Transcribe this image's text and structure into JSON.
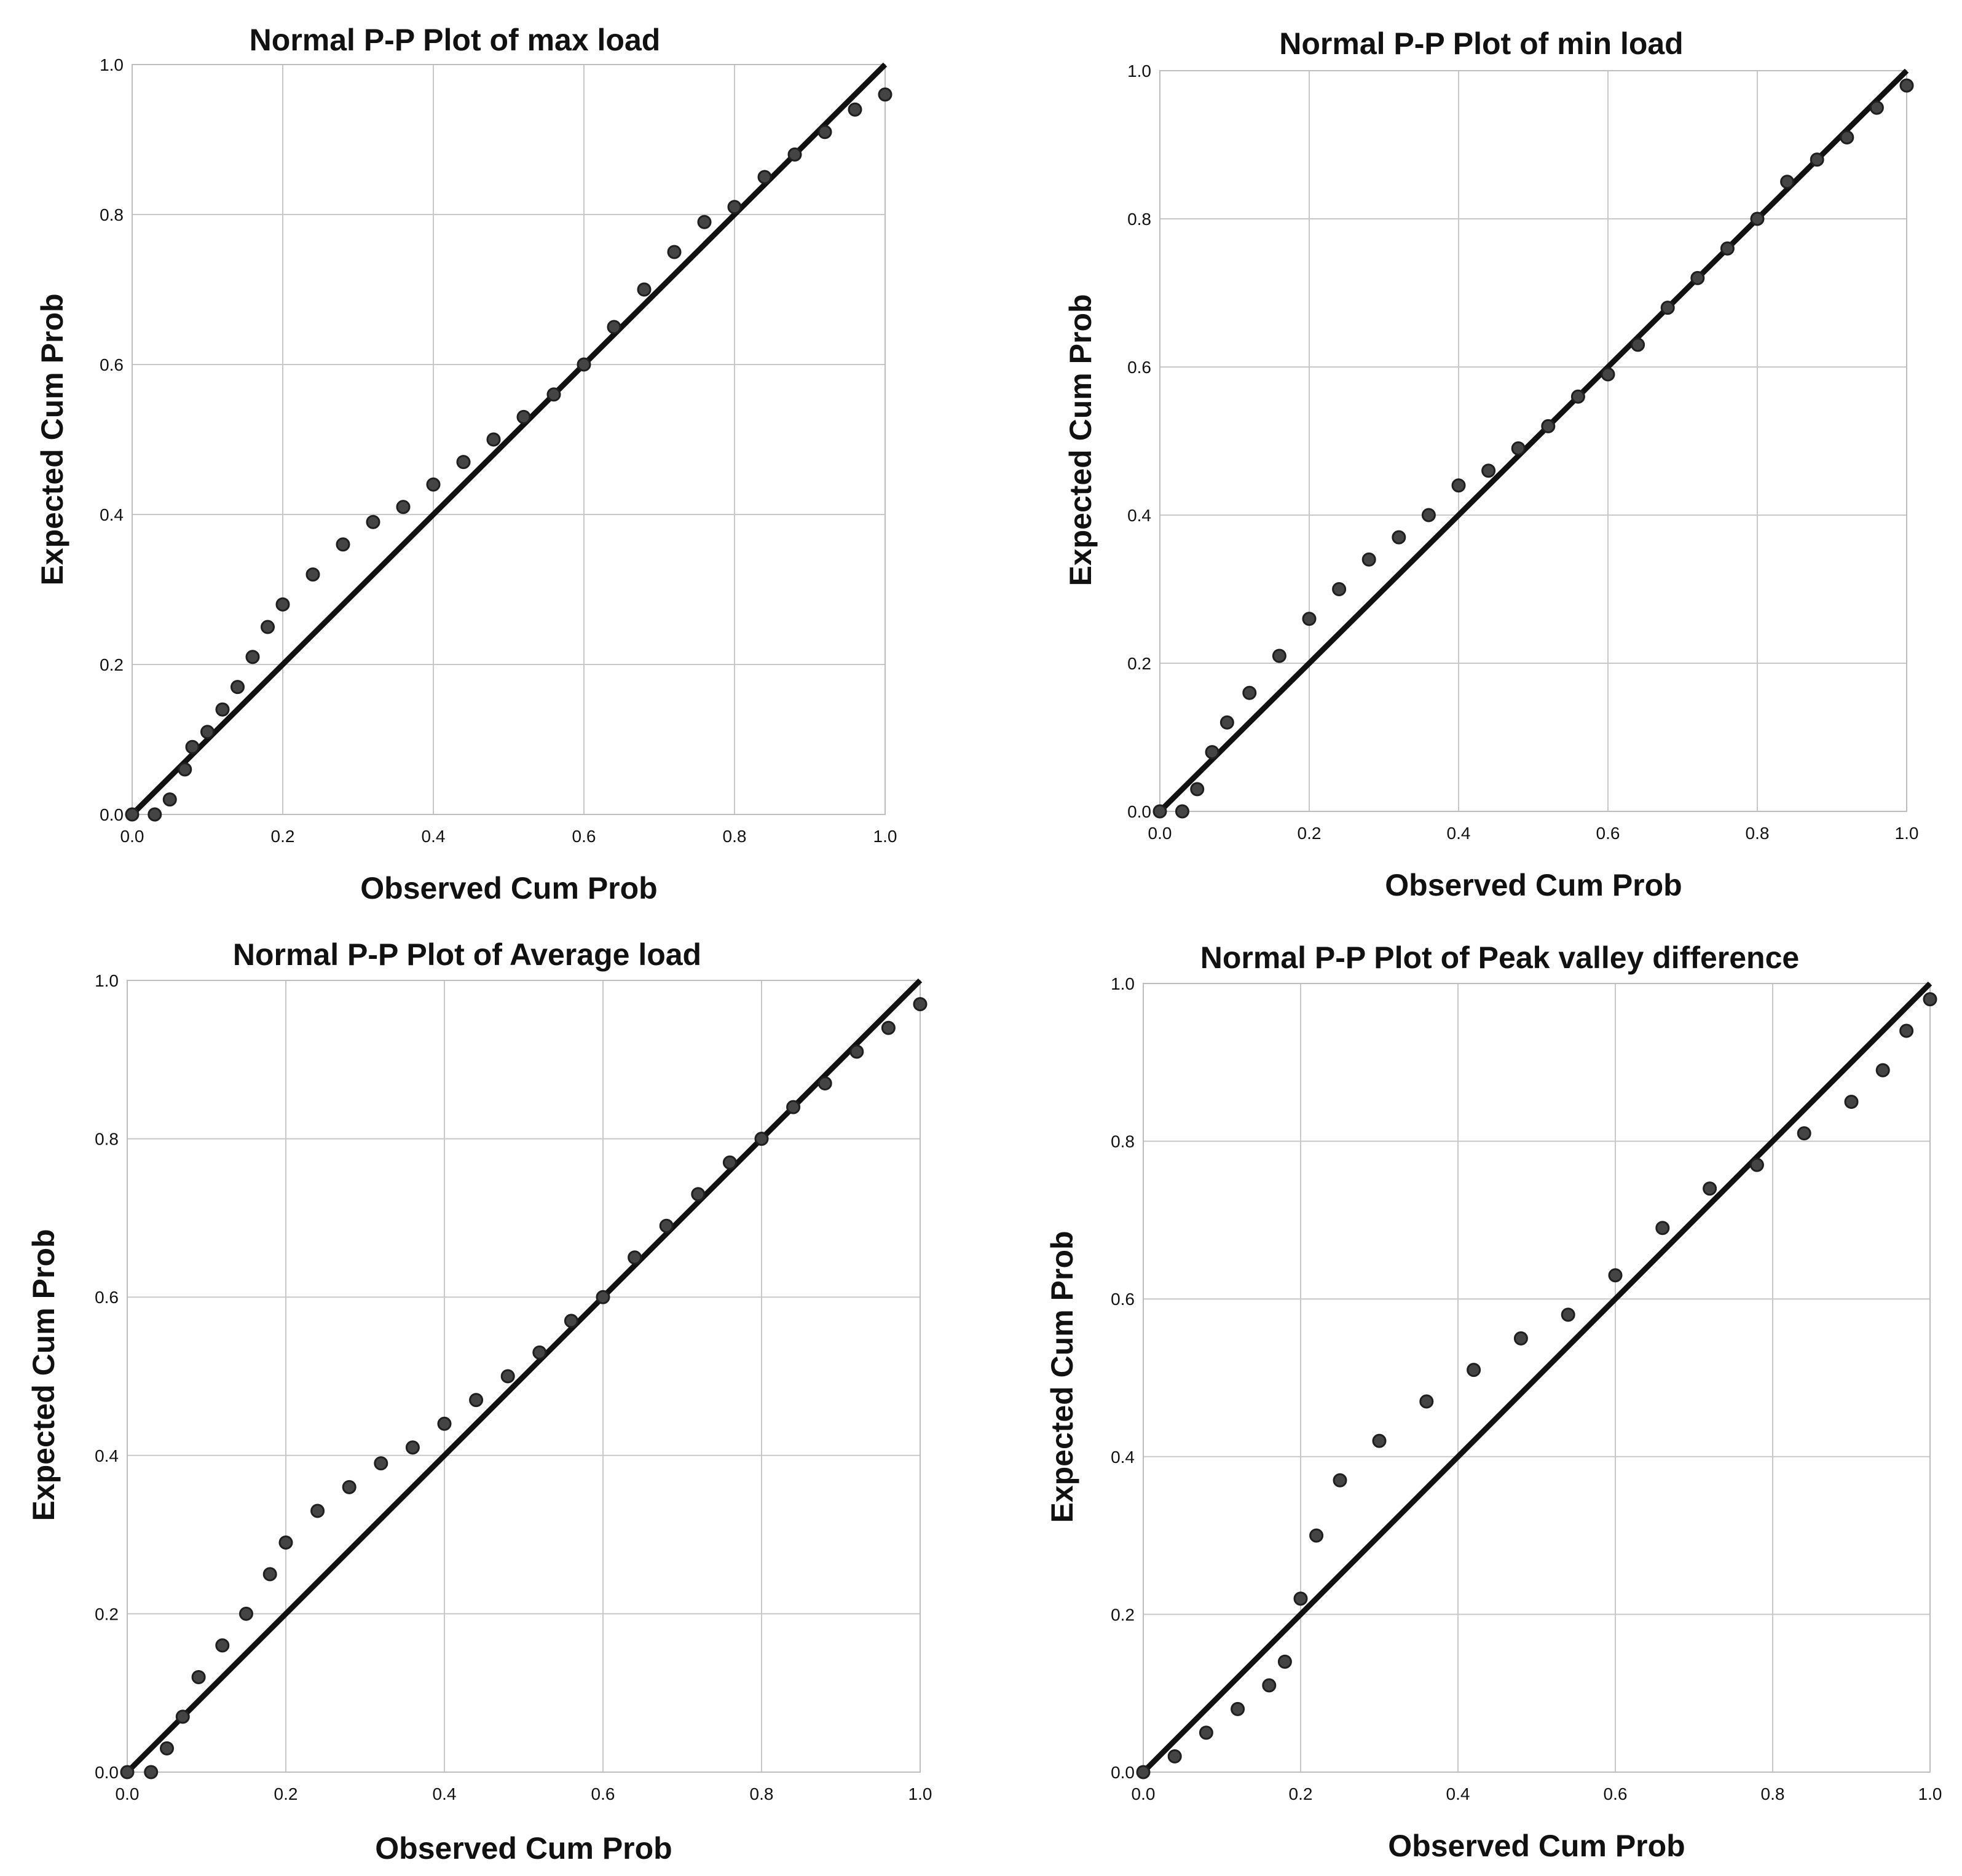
{
  "chart_data": [
    {
      "type": "scatter",
      "title": "Normal P-P Plot of max load",
      "xlabel": "Observed Cum Prob",
      "ylabel": "Expected Cum Prob",
      "xlim": [
        0.0,
        1.0
      ],
      "ylim": [
        0.0,
        1.0
      ],
      "grid": true,
      "xticks": [
        "0.0",
        "0.2",
        "0.4",
        "0.6",
        "0.8",
        "1.0"
      ],
      "yticks": [
        "0.0",
        "0.2",
        "0.4",
        "0.6",
        "0.8",
        "1.0"
      ],
      "reference_line": {
        "from": [
          0.0,
          0.0
        ],
        "to": [
          1.0,
          1.0
        ]
      },
      "series": [
        {
          "name": "max load",
          "points": [
            [
              0.0,
              0.0
            ],
            [
              0.03,
              0.0
            ],
            [
              0.05,
              0.02
            ],
            [
              0.07,
              0.06
            ],
            [
              0.08,
              0.09
            ],
            [
              0.1,
              0.11
            ],
            [
              0.12,
              0.14
            ],
            [
              0.14,
              0.17
            ],
            [
              0.16,
              0.21
            ],
            [
              0.18,
              0.25
            ],
            [
              0.2,
              0.28
            ],
            [
              0.24,
              0.32
            ],
            [
              0.28,
              0.36
            ],
            [
              0.32,
              0.39
            ],
            [
              0.36,
              0.41
            ],
            [
              0.4,
              0.44
            ],
            [
              0.44,
              0.47
            ],
            [
              0.48,
              0.5
            ],
            [
              0.52,
              0.53
            ],
            [
              0.56,
              0.56
            ],
            [
              0.6,
              0.6
            ],
            [
              0.64,
              0.65
            ],
            [
              0.68,
              0.7
            ],
            [
              0.72,
              0.75
            ],
            [
              0.76,
              0.79
            ],
            [
              0.8,
              0.81
            ],
            [
              0.84,
              0.85
            ],
            [
              0.88,
              0.88
            ],
            [
              0.92,
              0.91
            ],
            [
              0.96,
              0.94
            ],
            [
              1.0,
              0.96
            ]
          ]
        }
      ]
    },
    {
      "type": "scatter",
      "title": "Normal P-P Plot of min load",
      "xlabel": "Observed Cum Prob",
      "ylabel": "Expected Cum Prob",
      "xlim": [
        0.0,
        1.0
      ],
      "ylim": [
        0.0,
        1.0
      ],
      "grid": true,
      "xticks": [
        "0.0",
        "0.2",
        "0.4",
        "0.6",
        "0.8",
        "1.0"
      ],
      "yticks": [
        "0.0",
        "0.2",
        "0.4",
        "0.6",
        "0.8",
        "1.0"
      ],
      "reference_line": {
        "from": [
          0.0,
          0.0
        ],
        "to": [
          1.0,
          1.0
        ]
      },
      "series": [
        {
          "name": "min load",
          "points": [
            [
              0.0,
              0.0
            ],
            [
              0.03,
              0.0
            ],
            [
              0.05,
              0.03
            ],
            [
              0.07,
              0.08
            ],
            [
              0.09,
              0.12
            ],
            [
              0.12,
              0.16
            ],
            [
              0.16,
              0.21
            ],
            [
              0.2,
              0.26
            ],
            [
              0.24,
              0.3
            ],
            [
              0.28,
              0.34
            ],
            [
              0.32,
              0.37
            ],
            [
              0.36,
              0.4
            ],
            [
              0.4,
              0.44
            ],
            [
              0.44,
              0.46
            ],
            [
              0.48,
              0.49
            ],
            [
              0.52,
              0.52
            ],
            [
              0.56,
              0.56
            ],
            [
              0.6,
              0.59
            ],
            [
              0.64,
              0.63
            ],
            [
              0.68,
              0.68
            ],
            [
              0.72,
              0.72
            ],
            [
              0.76,
              0.76
            ],
            [
              0.8,
              0.8
            ],
            [
              0.84,
              0.85
            ],
            [
              0.88,
              0.88
            ],
            [
              0.92,
              0.91
            ],
            [
              0.96,
              0.95
            ],
            [
              1.0,
              0.98
            ]
          ]
        }
      ]
    },
    {
      "type": "scatter",
      "title": "Normal P-P Plot of Average load",
      "xlabel": "Observed Cum Prob",
      "ylabel": "Expected Cum Prob",
      "xlim": [
        0.0,
        1.0
      ],
      "ylim": [
        0.0,
        1.0
      ],
      "grid": true,
      "xticks": [
        "0.0",
        "0.2",
        "0.4",
        "0.6",
        "0.8",
        "1.0"
      ],
      "yticks": [
        "0.0",
        "0.2",
        "0.4",
        "0.6",
        "0.8",
        "1.0"
      ],
      "reference_line": {
        "from": [
          0.0,
          0.0
        ],
        "to": [
          1.0,
          1.0
        ]
      },
      "series": [
        {
          "name": "Average load",
          "points": [
            [
              0.0,
              0.0
            ],
            [
              0.03,
              0.0
            ],
            [
              0.05,
              0.03
            ],
            [
              0.07,
              0.07
            ],
            [
              0.09,
              0.12
            ],
            [
              0.12,
              0.16
            ],
            [
              0.15,
              0.2
            ],
            [
              0.18,
              0.25
            ],
            [
              0.2,
              0.29
            ],
            [
              0.24,
              0.33
            ],
            [
              0.28,
              0.36
            ],
            [
              0.32,
              0.39
            ],
            [
              0.36,
              0.41
            ],
            [
              0.4,
              0.44
            ],
            [
              0.44,
              0.47
            ],
            [
              0.48,
              0.5
            ],
            [
              0.52,
              0.53
            ],
            [
              0.56,
              0.57
            ],
            [
              0.6,
              0.6
            ],
            [
              0.64,
              0.65
            ],
            [
              0.68,
              0.69
            ],
            [
              0.72,
              0.73
            ],
            [
              0.76,
              0.77
            ],
            [
              0.8,
              0.8
            ],
            [
              0.84,
              0.84
            ],
            [
              0.88,
              0.87
            ],
            [
              0.92,
              0.91
            ],
            [
              0.96,
              0.94
            ],
            [
              1.0,
              0.97
            ]
          ]
        }
      ]
    },
    {
      "type": "scatter",
      "title": "Normal P-P Plot of Peak valley difference",
      "xlabel": "Observed Cum Prob",
      "ylabel": "Expected Cum Prob",
      "xlim": [
        0.0,
        1.0
      ],
      "ylim": [
        0.0,
        1.0
      ],
      "grid": true,
      "xticks": [
        "0.0",
        "0.2",
        "0.4",
        "0.6",
        "0.8",
        "1.0"
      ],
      "yticks": [
        "0.0",
        "0.2",
        "0.4",
        "0.6",
        "0.8",
        "1.0"
      ],
      "reference_line": {
        "from": [
          0.0,
          0.0
        ],
        "to": [
          1.0,
          1.0
        ]
      },
      "series": [
        {
          "name": "Peak valley difference",
          "points": [
            [
              0.0,
              0.0
            ],
            [
              0.04,
              0.02
            ],
            [
              0.08,
              0.05
            ],
            [
              0.12,
              0.08
            ],
            [
              0.16,
              0.11
            ],
            [
              0.18,
              0.14
            ],
            [
              0.2,
              0.22
            ],
            [
              0.22,
              0.3
            ],
            [
              0.25,
              0.37
            ],
            [
              0.3,
              0.42
            ],
            [
              0.36,
              0.47
            ],
            [
              0.42,
              0.51
            ],
            [
              0.48,
              0.55
            ],
            [
              0.54,
              0.58
            ],
            [
              0.6,
              0.63
            ],
            [
              0.66,
              0.69
            ],
            [
              0.72,
              0.74
            ],
            [
              0.78,
              0.77
            ],
            [
              0.84,
              0.81
            ],
            [
              0.9,
              0.85
            ],
            [
              0.94,
              0.89
            ],
            [
              0.97,
              0.94
            ],
            [
              1.0,
              0.98
            ]
          ]
        }
      ]
    }
  ]
}
